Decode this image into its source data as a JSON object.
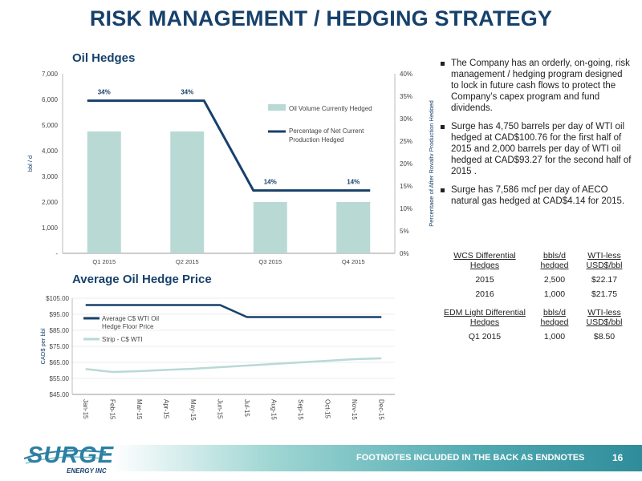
{
  "title": "RISK MANAGEMENT / HEDGING STRATEGY",
  "oil_hedges_title": "Oil Hedges",
  "avg_price_title": "Average Oil Hedge Price",
  "colors": {
    "navy": "#17416b",
    "bar": "#b9d9d5",
    "line": "#17416b",
    "strip": "#b9d9d5"
  },
  "chart_data": [
    {
      "type": "bar",
      "categories": [
        "Q1 2015",
        "Q2 2015",
        "Q3 2015",
        "Q4 2015"
      ],
      "series": [
        {
          "name": "Oil Volume Currently Hedged",
          "type": "bar",
          "axis": "left",
          "values": [
            4750,
            4750,
            2000,
            2000
          ]
        },
        {
          "name": "Percentage of Net Current Production Hedged",
          "type": "line",
          "axis": "right",
          "values": [
            34,
            34,
            14,
            14
          ]
        }
      ],
      "data_labels": [
        "34%",
        "34%",
        "14%",
        "14%"
      ],
      "ylabel": "bbl / d",
      "y2label": "Percentage of After Royalty Production Hedged",
      "ylim": [
        0,
        7000
      ],
      "y2lim": [
        0,
        40
      ],
      "yticks": [
        "-",
        "1,000",
        "2,000",
        "3,000",
        "4,000",
        "5,000",
        "6,000",
        "7,000"
      ],
      "y2ticks": [
        "0%",
        "5%",
        "10%",
        "15%",
        "20%",
        "25%",
        "30%",
        "35%",
        "40%"
      ],
      "legend": [
        "Oil Volume Currently Hedged",
        "Percentage of Net Current",
        "Production Hedged"
      ]
    },
    {
      "type": "line",
      "categories": [
        "Jan-15",
        "Feb-15",
        "Mar-15",
        "Apr-15",
        "May-15",
        "Jun-15",
        "Jul-15",
        "Aug-15",
        "Sep-15",
        "Oct-15",
        "Nov-15",
        "Dec-15"
      ],
      "series": [
        {
          "name": "Average C$ WTI Oil Hedge Floor Price",
          "values": [
            100.76,
            100.76,
            100.76,
            100.76,
            100.76,
            100.76,
            93.27,
            93.27,
            93.27,
            93.27,
            93.27,
            93.27
          ]
        },
        {
          "name": "Strip - C$ WTI",
          "values": [
            60.8,
            59.0,
            59.5,
            60.3,
            61.0,
            62.0,
            63.0,
            64.0,
            65.0,
            66.0,
            67.0,
            67.5
          ]
        }
      ],
      "ylabel": "CAD$ per bbl",
      "ylim": [
        45,
        105
      ],
      "yticks": [
        "$45.00",
        "$55.00",
        "$65.00",
        "$75.00",
        "$85.00",
        "$95.00",
        "$105.00"
      ],
      "legend": [
        "Average C$ WTI Oil",
        "Hedge Floor Price",
        "Strip - C$ WTI"
      ]
    }
  ],
  "bullets": [
    "The Company has an orderly, on-going, risk management / hedging program designed to lock in future cash flows to protect the Company’s capex program and fund dividends.",
    "Surge has 4,750 barrels per day of WTI oil hedged at CAD$100.76 for the first half of 2015 and 2,000 barrels per day of WTI oil hedged at CAD$93.27 for the second half of 2015 .",
    "Surge has 7,586 mcf per day of AECO natural gas hedged at CAD$4.14 for 2015."
  ],
  "wcs_table": {
    "headers": [
      [
        "WCS Differential",
        "Hedges"
      ],
      [
        "bbls/d",
        "hedged"
      ],
      [
        "WTI-less",
        "USD$/bbl"
      ]
    ],
    "rows": [
      [
        "2015",
        "2,500",
        "$22.17"
      ],
      [
        "2016",
        "1,000",
        "$21.75"
      ]
    ]
  },
  "edm_table": {
    "headers": [
      [
        "EDM Light Differential",
        "Hedges"
      ],
      [
        "bbls/d",
        "hedged"
      ],
      [
        "WTI-less",
        "USD$/bbl"
      ]
    ],
    "rows": [
      [
        "Q1 2015",
        "1,000",
        "$8.50"
      ]
    ]
  },
  "footer": {
    "text": "FOOTNOTES INCLUDED IN THE BACK AS ENDNOTES",
    "page": "16"
  },
  "logo": {
    "word": "SURGE",
    "sub": "ENERGY INC"
  }
}
